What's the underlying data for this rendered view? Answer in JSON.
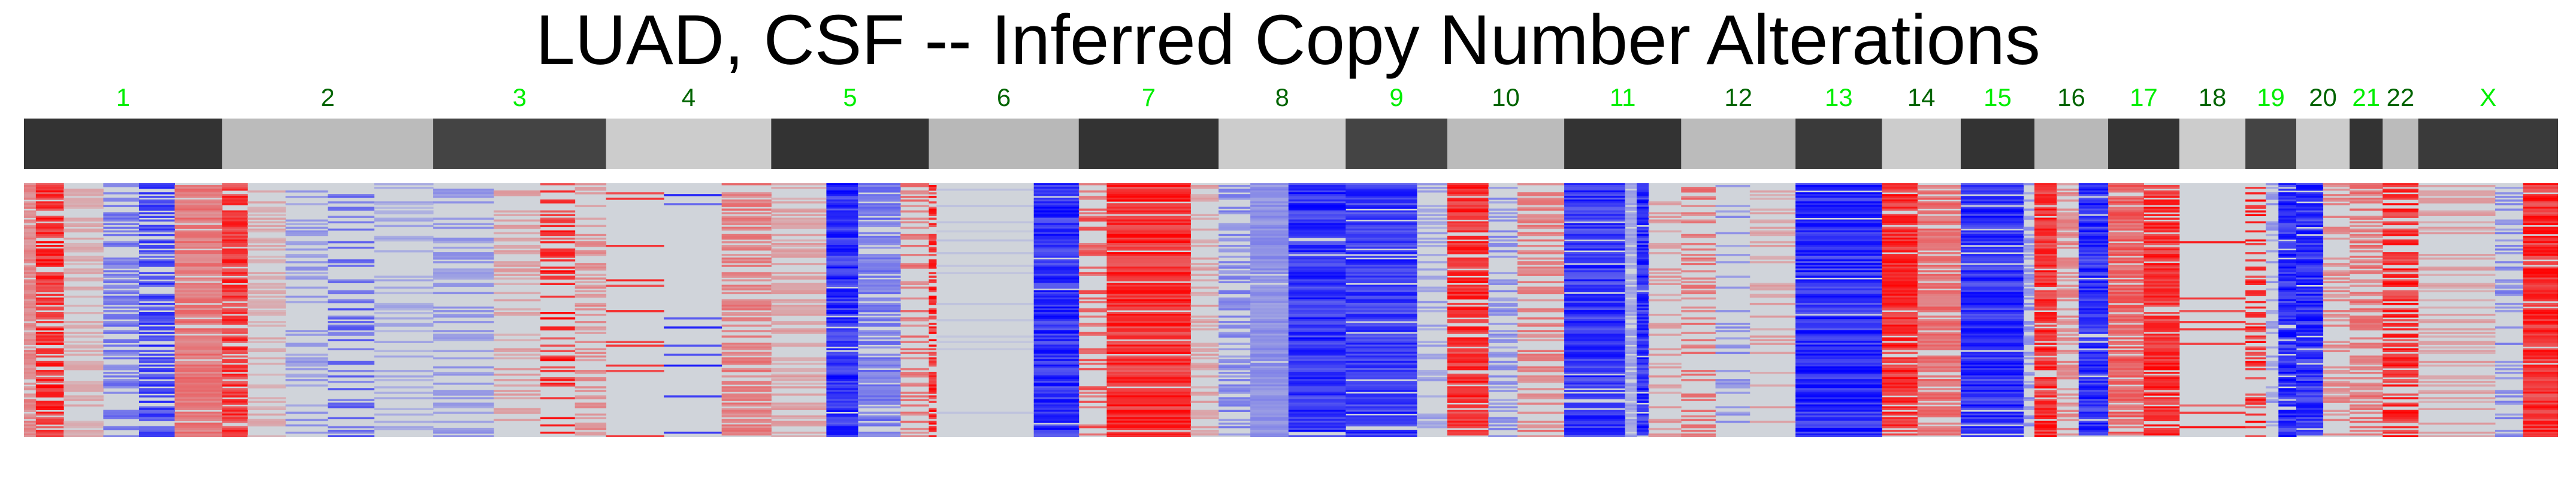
{
  "title": "LUAD, CSF -- Inferred Copy Number Alterations",
  "chart_data": {
    "type": "heatmap",
    "title": "LUAD, CSF -- Inferred Copy Number Alterations",
    "xlabel": "",
    "ylabel": "",
    "colorscale": {
      "loss": "#0000ff",
      "neutral": "#d0d4da",
      "gain": "#ff0000"
    },
    "value_range": [
      -1,
      1
    ],
    "chromosomes": [
      "1",
      "2",
      "3",
      "4",
      "5",
      "6",
      "7",
      "8",
      "9",
      "10",
      "11",
      "12",
      "13",
      "14",
      "15",
      "16",
      "17",
      "18",
      "19",
      "20",
      "21",
      "22",
      "X"
    ],
    "chromosome_widths": [
      0.078,
      0.083,
      0.068,
      0.065,
      0.062,
      0.059,
      0.055,
      0.05,
      0.04,
      0.046,
      0.046,
      0.045,
      0.034,
      0.031,
      0.029,
      0.029,
      0.028,
      0.026,
      0.02,
      0.021,
      0.013,
      0.014,
      0.055
    ],
    "label_colors": [
      "#00ee00",
      "#006400",
      "#00ee00",
      "#006400",
      "#00ee00",
      "#006400",
      "#00ee00",
      "#006400",
      "#00ee00",
      "#006400",
      "#00ee00",
      "#006400",
      "#00ee00",
      "#006400",
      "#00ee00",
      "#006400",
      "#00ee00",
      "#006400",
      "#00ee00",
      "#006400",
      "#00ee00",
      "#006400",
      "#00ee00"
    ],
    "ideogram_colors": [
      "#333333",
      "#bbbbbb",
      "#444444",
      "#cccccc",
      "#333333",
      "#b8b8b8",
      "#333333",
      "#cccccc",
      "#444444",
      "#bbbbbb",
      "#333333",
      "#bbbbbb",
      "#3a3a3a",
      "#cccccc",
      "#333333",
      "#b8b8b8",
      "#333333",
      "#cccccc",
      "#444444",
      "#cccccc",
      "#333333",
      "#bbbbbb",
      "#3a3a3a"
    ],
    "n_cells": 140,
    "segments": [
      {
        "chr": "1",
        "start": 0.0,
        "end": 0.06,
        "level": 0.45,
        "freq": 0.85
      },
      {
        "chr": "1",
        "start": 0.06,
        "end": 0.2,
        "level": 1.0,
        "freq": 0.75
      },
      {
        "chr": "1",
        "start": 0.2,
        "end": 0.4,
        "level": 0.25,
        "freq": 0.5
      },
      {
        "chr": "1",
        "start": 0.4,
        "end": 0.58,
        "level": -0.55,
        "freq": 0.5
      },
      {
        "chr": "1",
        "start": 0.58,
        "end": 0.76,
        "level": -0.85,
        "freq": 0.6
      },
      {
        "chr": "1",
        "start": 0.76,
        "end": 1.0,
        "level": 0.55,
        "freq": 0.9
      },
      {
        "chr": "2",
        "start": 0.0,
        "end": 0.12,
        "level": 0.95,
        "freq": 0.8
      },
      {
        "chr": "2",
        "start": 0.12,
        "end": 0.3,
        "level": 0.25,
        "freq": 0.5
      },
      {
        "chr": "2",
        "start": 0.3,
        "end": 0.5,
        "level": -0.35,
        "freq": 0.3
      },
      {
        "chr": "2",
        "start": 0.5,
        "end": 0.72,
        "level": -0.65,
        "freq": 0.35
      },
      {
        "chr": "2",
        "start": 0.72,
        "end": 1.0,
        "level": -0.25,
        "freq": 0.3
      },
      {
        "chr": "3",
        "start": 0.0,
        "end": 0.35,
        "level": -0.35,
        "freq": 0.4
      },
      {
        "chr": "3",
        "start": 0.35,
        "end": 0.62,
        "level": 0.3,
        "freq": 0.35
      },
      {
        "chr": "3",
        "start": 0.62,
        "end": 0.82,
        "level": 1.0,
        "freq": 0.35
      },
      {
        "chr": "3",
        "start": 0.82,
        "end": 1.0,
        "level": 0.4,
        "freq": 0.3
      },
      {
        "chr": "4",
        "start": 0.0,
        "end": 0.35,
        "level": 0.9,
        "freq": 0.08
      },
      {
        "chr": "4",
        "start": 0.35,
        "end": 0.7,
        "level": -0.9,
        "freq": 0.08
      },
      {
        "chr": "4",
        "start": 0.7,
        "end": 1.0,
        "level": 0.5,
        "freq": 0.6
      },
      {
        "chr": "5",
        "start": 0.0,
        "end": 0.35,
        "level": 0.3,
        "freq": 0.4
      },
      {
        "chr": "5",
        "start": 0.35,
        "end": 0.55,
        "level": -1.0,
        "freq": 0.95
      },
      {
        "chr": "5",
        "start": 0.55,
        "end": 0.82,
        "level": -0.55,
        "freq": 0.7
      },
      {
        "chr": "5",
        "start": 0.82,
        "end": 1.0,
        "level": 0.55,
        "freq": 0.4
      },
      {
        "chr": "6",
        "start": 0.0,
        "end": 0.05,
        "level": 1.0,
        "freq": 0.6
      },
      {
        "chr": "6",
        "start": 0.05,
        "end": 0.7,
        "level": -0.1,
        "freq": 0.1
      },
      {
        "chr": "6",
        "start": 0.7,
        "end": 1.0,
        "level": -1.0,
        "freq": 0.97
      },
      {
        "chr": "7",
        "start": 0.0,
        "end": 0.2,
        "level": 0.7,
        "freq": 0.3
      },
      {
        "chr": "7",
        "start": 0.2,
        "end": 0.8,
        "level": 1.0,
        "freq": 0.92
      },
      {
        "chr": "7",
        "start": 0.8,
        "end": 1.0,
        "level": 0.3,
        "freq": 0.4
      },
      {
        "chr": "8",
        "start": 0.0,
        "end": 0.25,
        "level": -0.45,
        "freq": 0.4
      },
      {
        "chr": "8",
        "start": 0.25,
        "end": 0.55,
        "level": -0.4,
        "freq": 0.97
      },
      {
        "chr": "8",
        "start": 0.55,
        "end": 1.0,
        "level": -1.0,
        "freq": 0.95
      },
      {
        "chr": "9",
        "start": 0.0,
        "end": 0.7,
        "level": -0.95,
        "freq": 0.9
      },
      {
        "chr": "9",
        "start": 0.7,
        "end": 1.0,
        "level": -0.3,
        "freq": 0.3
      },
      {
        "chr": "10",
        "start": 0.0,
        "end": 0.35,
        "level": 1.0,
        "freq": 0.8
      },
      {
        "chr": "10",
        "start": 0.35,
        "end": 0.6,
        "level": -0.4,
        "freq": 0.5
      },
      {
        "chr": "10",
        "start": 0.6,
        "end": 1.0,
        "level": 0.5,
        "freq": 0.5
      },
      {
        "chr": "11",
        "start": 0.0,
        "end": 0.52,
        "level": -0.95,
        "freq": 0.9
      },
      {
        "chr": "11",
        "start": 0.52,
        "end": 0.62,
        "level": -0.3,
        "freq": 0.8
      },
      {
        "chr": "11",
        "start": 0.62,
        "end": 0.72,
        "level": -1.0,
        "freq": 0.95
      },
      {
        "chr": "11",
        "start": 0.72,
        "end": 1.0,
        "level": 0.35,
        "freq": 0.25
      },
      {
        "chr": "12",
        "start": 0.0,
        "end": 0.3,
        "level": 0.55,
        "freq": 0.3
      },
      {
        "chr": "12",
        "start": 0.3,
        "end": 0.6,
        "level": -0.4,
        "freq": 0.2
      },
      {
        "chr": "12",
        "start": 0.6,
        "end": 1.0,
        "level": 0.3,
        "freq": 0.2
      },
      {
        "chr": "13",
        "start": 0.0,
        "end": 1.0,
        "level": -1.0,
        "freq": 0.93
      },
      {
        "chr": "14",
        "start": 0.0,
        "end": 0.45,
        "level": 1.0,
        "freq": 0.85
      },
      {
        "chr": "14",
        "start": 0.45,
        "end": 1.0,
        "level": 0.6,
        "freq": 0.7
      },
      {
        "chr": "15",
        "start": 0.0,
        "end": 0.85,
        "level": -1.0,
        "freq": 0.95
      },
      {
        "chr": "15",
        "start": 0.85,
        "end": 1.0,
        "level": -0.4,
        "freq": 0.5
      },
      {
        "chr": "16",
        "start": 0.0,
        "end": 0.3,
        "level": 1.0,
        "freq": 0.85
      },
      {
        "chr": "16",
        "start": 0.3,
        "end": 0.6,
        "level": 0.45,
        "freq": 0.5
      },
      {
        "chr": "16",
        "start": 0.6,
        "end": 1.0,
        "level": -1.0,
        "freq": 0.9
      },
      {
        "chr": "17",
        "start": 0.0,
        "end": 0.5,
        "level": 0.7,
        "freq": 0.8
      },
      {
        "chr": "17",
        "start": 0.5,
        "end": 1.0,
        "level": 1.0,
        "freq": 0.85
      },
      {
        "chr": "18",
        "start": 0.0,
        "end": 1.0,
        "level": 0.9,
        "freq": 0.06
      },
      {
        "chr": "19",
        "start": 0.0,
        "end": 0.4,
        "level": 1.0,
        "freq": 0.4
      },
      {
        "chr": "19",
        "start": 0.4,
        "end": 0.65,
        "level": -0.35,
        "freq": 0.3
      },
      {
        "chr": "19",
        "start": 0.65,
        "end": 1.0,
        "level": -1.0,
        "freq": 0.9
      },
      {
        "chr": "20",
        "start": 0.0,
        "end": 0.5,
        "level": -1.0,
        "freq": 0.9
      },
      {
        "chr": "20",
        "start": 0.5,
        "end": 1.0,
        "level": 0.45,
        "freq": 0.4
      },
      {
        "chr": "21",
        "start": 0.0,
        "end": 1.0,
        "level": 0.55,
        "freq": 0.5
      },
      {
        "chr": "22",
        "start": 0.0,
        "end": 1.0,
        "level": 1.0,
        "freq": 0.65
      },
      {
        "chr": "X",
        "start": 0.0,
        "end": 0.55,
        "level": 0.3,
        "freq": 0.3
      },
      {
        "chr": "X",
        "start": 0.55,
        "end": 0.75,
        "level": -0.45,
        "freq": 0.25
      },
      {
        "chr": "X",
        "start": 0.75,
        "end": 1.0,
        "level": 1.0,
        "freq": 0.95
      }
    ]
  }
}
